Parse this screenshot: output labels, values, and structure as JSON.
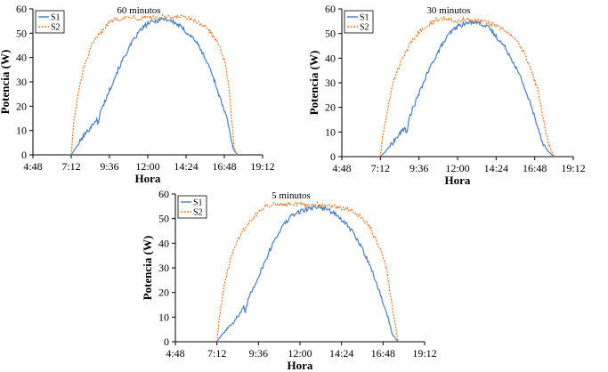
{
  "chart_data": [
    {
      "type": "line",
      "title": "60 minutos",
      "xlabel": "Hora",
      "ylabel": "Potencia (W)",
      "ylim": [
        0,
        60
      ],
      "xlim": [
        "4:48",
        "19:12"
      ],
      "x_ticks": [
        "4:48",
        "7:12",
        "9:36",
        "12:00",
        "14:24",
        "16:48",
        "19:12"
      ],
      "y_ticks": [
        0,
        10,
        20,
        30,
        40,
        50,
        60
      ],
      "legend_position": "top-left",
      "grid": false,
      "series": [
        {
          "name": "S1",
          "color": "#4a7ebb",
          "style": "solid",
          "x": [
            "7:12",
            "7:30",
            "8:00",
            "8:30",
            "8:48",
            "8:52",
            "8:55",
            "9:00",
            "9:30",
            "10:00",
            "10:30",
            "11:00",
            "11:30",
            "12:00",
            "12:30",
            "13:00",
            "13:30",
            "14:00",
            "14:30",
            "15:00",
            "15:30",
            "16:00",
            "16:30",
            "17:00",
            "17:20",
            "17:30",
            "17:40"
          ],
          "y": [
            0,
            3,
            8,
            12,
            15,
            12,
            14,
            17,
            25,
            33,
            40,
            46,
            51,
            54,
            55,
            56,
            55,
            53,
            50,
            47,
            41,
            34,
            24,
            14,
            3,
            1,
            0
          ]
        },
        {
          "name": "S2",
          "color": "#e07a2d",
          "style": "dashed",
          "x": [
            "7:12",
            "7:20",
            "7:40",
            "8:00",
            "8:30",
            "9:00",
            "9:30",
            "10:00",
            "10:30",
            "11:00",
            "11:30",
            "12:00",
            "12:30",
            "13:00",
            "13:30",
            "14:00",
            "14:30",
            "15:00",
            "15:30",
            "16:00",
            "16:30",
            "16:50",
            "17:05",
            "17:15",
            "17:25",
            "17:35"
          ],
          "y": [
            0,
            12,
            26,
            36,
            45,
            50,
            54,
            56,
            56,
            57,
            56,
            57,
            56,
            57,
            56,
            57,
            56,
            55,
            53,
            50,
            45,
            38,
            28,
            15,
            3,
            0
          ]
        }
      ]
    },
    {
      "type": "line",
      "title": "30 minutos",
      "xlabel": "Hora",
      "ylabel": "Potencia (W)",
      "ylim": [
        0,
        60
      ],
      "xlim": [
        "4:48",
        "19:12"
      ],
      "x_ticks": [
        "4:48",
        "7:12",
        "9:36",
        "12:00",
        "14:24",
        "16:48",
        "19:12"
      ],
      "y_ticks": [
        0,
        10,
        20,
        30,
        40,
        50,
        60
      ],
      "legend_position": "top-left",
      "grid": false,
      "series": [
        {
          "name": "S1",
          "color": "#4a7ebb",
          "style": "solid",
          "x": [
            "7:12",
            "7:30",
            "8:00",
            "8:30",
            "8:45",
            "8:50",
            "8:55",
            "9:00",
            "9:30",
            "10:00",
            "10:30",
            "11:00",
            "11:30",
            "12:00",
            "12:30",
            "13:00",
            "13:30",
            "14:00",
            "14:30",
            "15:00",
            "15:30",
            "16:00",
            "16:30",
            "17:00",
            "17:20",
            "17:40",
            "18:00"
          ],
          "y": [
            0,
            2,
            6,
            10,
            12,
            9,
            12,
            16,
            24,
            32,
            39,
            45,
            50,
            53,
            54,
            55,
            54,
            52,
            48,
            44,
            38,
            31,
            22,
            12,
            5,
            2,
            0
          ]
        },
        {
          "name": "S2",
          "color": "#e07a2d",
          "style": "dashed",
          "x": [
            "7:12",
            "7:20",
            "7:40",
            "8:00",
            "8:30",
            "9:00",
            "9:30",
            "10:00",
            "10:30",
            "11:00",
            "11:30",
            "12:00",
            "12:30",
            "13:00",
            "13:30",
            "14:00",
            "14:30",
            "15:00",
            "15:30",
            "16:00",
            "16:30",
            "17:00",
            "17:20",
            "17:40",
            "18:00"
          ],
          "y": [
            0,
            8,
            20,
            30,
            39,
            45,
            50,
            53,
            55,
            56,
            56,
            55,
            56,
            55,
            55,
            54,
            53,
            51,
            48,
            44,
            37,
            27,
            15,
            5,
            0
          ]
        }
      ]
    },
    {
      "type": "line",
      "title": "5 minutos",
      "xlabel": "Hora",
      "ylabel": "Potencia (W)",
      "ylim": [
        0,
        60
      ],
      "xlim": [
        "4:48",
        "19:12"
      ],
      "x_ticks": [
        "4:48",
        "7:12",
        "9:36",
        "12:00",
        "14:24",
        "16:48",
        "19:12"
      ],
      "y_ticks": [
        0,
        10,
        20,
        30,
        40,
        50,
        60
      ],
      "legend_position": "top-left",
      "grid": false,
      "series": [
        {
          "name": "S1",
          "color": "#4a7ebb",
          "style": "solid",
          "x": [
            "7:12",
            "7:30",
            "8:00",
            "8:30",
            "8:45",
            "8:50",
            "8:55",
            "9:00",
            "9:30",
            "10:00",
            "10:30",
            "11:00",
            "11:30",
            "12:00",
            "12:30",
            "13:00",
            "13:30",
            "14:00",
            "14:30",
            "15:00",
            "15:30",
            "16:00",
            "16:30",
            "17:00",
            "17:20",
            "17:40"
          ],
          "y": [
            0,
            3,
            7,
            11,
            14,
            11,
            14,
            17,
            25,
            33,
            41,
            47,
            51,
            53,
            54,
            55,
            54,
            52,
            49,
            45,
            39,
            32,
            22,
            12,
            3,
            0
          ]
        },
        {
          "name": "S2",
          "color": "#e07a2d",
          "style": "dashed",
          "x": [
            "7:12",
            "7:20",
            "7:40",
            "8:00",
            "8:30",
            "9:00",
            "9:30",
            "10:00",
            "10:30",
            "11:00",
            "11:30",
            "12:00",
            "12:30",
            "13:00",
            "13:30",
            "14:00",
            "14:30",
            "15:00",
            "15:30",
            "16:00",
            "16:30",
            "17:00",
            "17:20",
            "17:40"
          ],
          "y": [
            0,
            10,
            24,
            34,
            43,
            48,
            52,
            55,
            56,
            56,
            56,
            56,
            55,
            56,
            55,
            55,
            54,
            53,
            51,
            47,
            40,
            30,
            14,
            0
          ]
        }
      ]
    }
  ]
}
